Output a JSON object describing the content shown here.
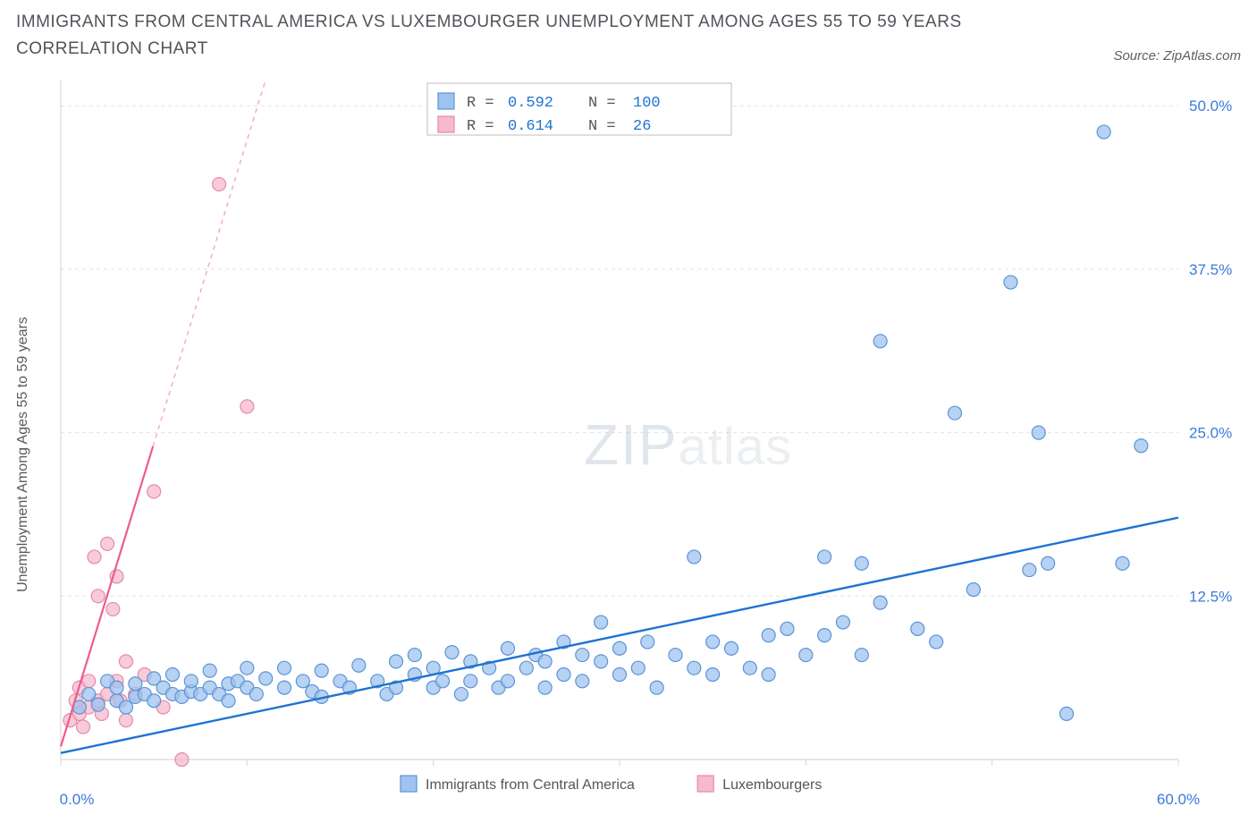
{
  "title": "IMMIGRANTS FROM CENTRAL AMERICA VS LUXEMBOURGER UNEMPLOYMENT AMONG AGES 55 TO 59 YEARS CORRELATION CHART",
  "source": "Source: ZipAtlas.com",
  "ylabel": "Unemployment Among Ages 55 to 59 years",
  "watermark_a": "ZIP",
  "watermark_b": "atlas",
  "chart": {
    "type": "scatter",
    "background_color": "#ffffff",
    "grid_color": "#e2e2e2",
    "axis_color": "#d8d8d8",
    "xlim": [
      0,
      60
    ],
    "ylim": [
      0,
      52
    ],
    "x_ticks": [
      0,
      10,
      20,
      30,
      40,
      50,
      60
    ],
    "x_tick_labels_shown": {
      "0": "0.0%",
      "60": "60.0%"
    },
    "y_ticks": [
      12.5,
      25.0,
      37.5,
      50.0
    ],
    "y_tick_labels": [
      "12.5%",
      "25.0%",
      "37.5%",
      "50.0%"
    ],
    "y_tick_label_color": "#3b7ad9",
    "x_tick_label_color": "#3b7ad9",
    "series": [
      {
        "name": "Immigrants from Central America",
        "marker_color_fill": "#9fc3ee",
        "marker_color_stroke": "#5a94d8",
        "marker_opacity": 0.75,
        "marker_radius": 7.5,
        "trend_color": "#1e73d2",
        "trend_y_at_x0": 0.5,
        "trend_y_at_x60": 18.5,
        "R": 0.592,
        "N": 100,
        "points": [
          [
            1.0,
            4.0
          ],
          [
            1.5,
            5.0
          ],
          [
            2.0,
            4.2
          ],
          [
            2.5,
            6.0
          ],
          [
            3.0,
            4.5
          ],
          [
            3.0,
            5.5
          ],
          [
            3.5,
            4.0
          ],
          [
            4.0,
            4.8
          ],
          [
            4.0,
            5.8
          ],
          [
            4.5,
            5.0
          ],
          [
            5.0,
            4.5
          ],
          [
            5.0,
            6.2
          ],
          [
            5.5,
            5.5
          ],
          [
            6.0,
            5.0
          ],
          [
            6.0,
            6.5
          ],
          [
            6.5,
            4.8
          ],
          [
            7.0,
            5.2
          ],
          [
            7.0,
            6.0
          ],
          [
            7.5,
            5.0
          ],
          [
            8.0,
            5.5
          ],
          [
            8.0,
            6.8
          ],
          [
            8.5,
            5.0
          ],
          [
            9.0,
            5.8
          ],
          [
            9.0,
            4.5
          ],
          [
            9.5,
            6.0
          ],
          [
            10.0,
            5.5
          ],
          [
            10.0,
            7.0
          ],
          [
            10.5,
            5.0
          ],
          [
            11.0,
            6.2
          ],
          [
            12.0,
            5.5
          ],
          [
            12.0,
            7.0
          ],
          [
            13.0,
            6.0
          ],
          [
            13.5,
            5.2
          ],
          [
            14.0,
            6.8
          ],
          [
            14.0,
            4.8
          ],
          [
            15.0,
            6.0
          ],
          [
            15.5,
            5.5
          ],
          [
            16.0,
            7.2
          ],
          [
            17.0,
            6.0
          ],
          [
            17.5,
            5.0
          ],
          [
            18.0,
            7.5
          ],
          [
            18.0,
            5.5
          ],
          [
            19.0,
            6.5
          ],
          [
            19.0,
            8.0
          ],
          [
            20.0,
            5.5
          ],
          [
            20.0,
            7.0
          ],
          [
            20.5,
            6.0
          ],
          [
            21.0,
            8.2
          ],
          [
            21.5,
            5.0
          ],
          [
            22.0,
            7.5
          ],
          [
            22.0,
            6.0
          ],
          [
            23.0,
            7.0
          ],
          [
            23.5,
            5.5
          ],
          [
            24.0,
            8.5
          ],
          [
            24.0,
            6.0
          ],
          [
            25.0,
            7.0
          ],
          [
            25.5,
            8.0
          ],
          [
            26.0,
            5.5
          ],
          [
            26.0,
            7.5
          ],
          [
            27.0,
            6.5
          ],
          [
            27.0,
            9.0
          ],
          [
            28.0,
            6.0
          ],
          [
            28.0,
            8.0
          ],
          [
            29.0,
            7.5
          ],
          [
            29.0,
            10.5
          ],
          [
            30.0,
            6.5
          ],
          [
            30.0,
            8.5
          ],
          [
            31.0,
            7.0
          ],
          [
            31.5,
            9.0
          ],
          [
            32.0,
            5.5
          ],
          [
            33.0,
            8.0
          ],
          [
            34.0,
            7.0
          ],
          [
            34.0,
            15.5
          ],
          [
            35.0,
            9.0
          ],
          [
            35.0,
            6.5
          ],
          [
            36.0,
            8.5
          ],
          [
            37.0,
            7.0
          ],
          [
            38.0,
            9.5
          ],
          [
            38.0,
            6.5
          ],
          [
            39.0,
            10.0
          ],
          [
            40.0,
            8.0
          ],
          [
            41.0,
            15.5
          ],
          [
            41.0,
            9.5
          ],
          [
            42.0,
            10.5
          ],
          [
            43.0,
            8.0
          ],
          [
            43.0,
            15.0
          ],
          [
            44.0,
            12.0
          ],
          [
            44.0,
            32.0
          ],
          [
            46.0,
            10.0
          ],
          [
            47.0,
            9.0
          ],
          [
            48.0,
            26.5
          ],
          [
            49.0,
            13.0
          ],
          [
            51.0,
            36.5
          ],
          [
            52.0,
            14.5
          ],
          [
            52.5,
            25.0
          ],
          [
            53.0,
            15.0
          ],
          [
            54.0,
            3.5
          ],
          [
            56.0,
            48.0
          ],
          [
            57.0,
            15.0
          ],
          [
            58.0,
            24.0
          ]
        ]
      },
      {
        "name": "Luxembourgers",
        "marker_color_fill": "#f6b9cd",
        "marker_color_stroke": "#e68aab",
        "marker_opacity": 0.75,
        "marker_radius": 7.5,
        "trend_color": "#ef5b8a",
        "trend_y_at_x0": 1.0,
        "trend_y_at_xend": 52.0,
        "trend_x_at_top": 11.0,
        "R": 0.614,
        "N": 26,
        "points": [
          [
            0.5,
            3.0
          ],
          [
            0.8,
            4.5
          ],
          [
            1.0,
            3.5
          ],
          [
            1.0,
            5.5
          ],
          [
            1.2,
            2.5
          ],
          [
            1.5,
            4.0
          ],
          [
            1.5,
            6.0
          ],
          [
            1.8,
            15.5
          ],
          [
            2.0,
            4.5
          ],
          [
            2.0,
            12.5
          ],
          [
            2.2,
            3.5
          ],
          [
            2.5,
            5.0
          ],
          [
            2.5,
            16.5
          ],
          [
            2.8,
            11.5
          ],
          [
            3.0,
            6.0
          ],
          [
            3.0,
            14.0
          ],
          [
            3.2,
            4.5
          ],
          [
            3.5,
            7.5
          ],
          [
            3.5,
            3.0
          ],
          [
            4.0,
            5.0
          ],
          [
            4.5,
            6.5
          ],
          [
            5.0,
            20.5
          ],
          [
            5.5,
            4.0
          ],
          [
            6.5,
            0.0
          ],
          [
            8.5,
            44.0
          ],
          [
            10.0,
            27.0
          ]
        ]
      }
    ],
    "stats_box": {
      "bg": "#ffffff",
      "border": "#bfbfbf",
      "rows": [
        {
          "swatch_fill": "#9fc3ee",
          "swatch_stroke": "#5a94d8",
          "R_label": "R =",
          "R_val": "0.592",
          "N_label": "N =",
          "N_val": "100"
        },
        {
          "swatch_fill": "#f6b9cd",
          "swatch_stroke": "#e68aab",
          "R_label": "R =",
          "R_val": "0.614",
          "N_label": "N =",
          "N_val": " 26"
        }
      ]
    },
    "bottom_legend": [
      {
        "swatch_fill": "#9fc3ee",
        "swatch_stroke": "#5a94d8",
        "label": "Immigrants from Central America"
      },
      {
        "swatch_fill": "#f6b9cd",
        "swatch_stroke": "#e68aab",
        "label": "Luxembourgers"
      }
    ]
  }
}
